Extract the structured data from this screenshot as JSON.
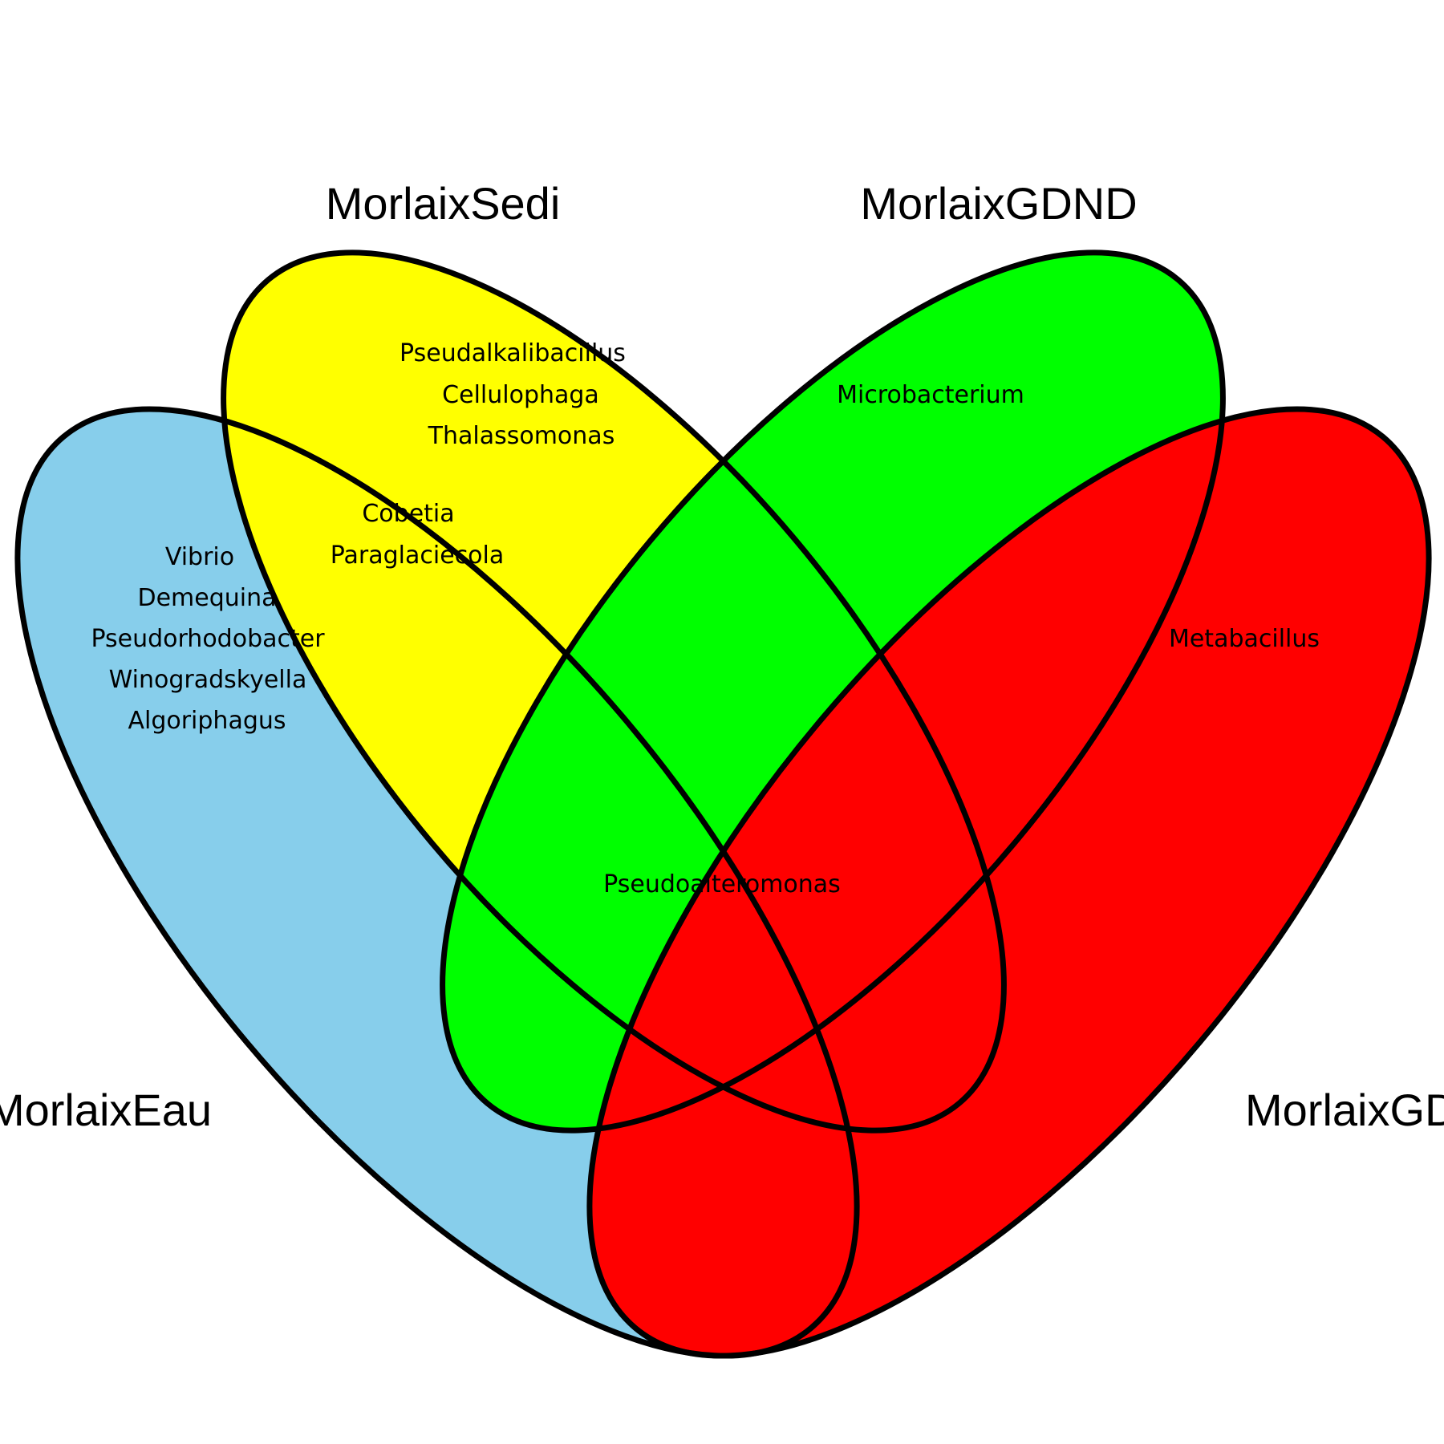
{
  "colors": {
    "set_a": "#87CEEB",
    "set_b": "#FFFF00",
    "set_c": "#00FF00",
    "set_d": "#FF0000",
    "outline": "#000000"
  },
  "sets": {
    "a": "MorlaixEau",
    "b": "MorlaixSedi",
    "c": "MorlaixGDND",
    "d": "MorlaixGD"
  },
  "regions": {
    "a_only": [
      "Vibrio",
      "Demequina",
      "Pseudorhodobacter",
      "Winogradskyella",
      "Algoriphagus"
    ],
    "b_only": [
      "Pseudalkalibacillus",
      "Cellulophaga",
      "Thalassomonas"
    ],
    "ab": [
      "Cobetia",
      "Paraglaciecola"
    ],
    "c_only": [
      "Microbacterium"
    ],
    "d_only": [
      "Metabacillus"
    ],
    "center": [
      "Pseudoalteromonas"
    ]
  }
}
